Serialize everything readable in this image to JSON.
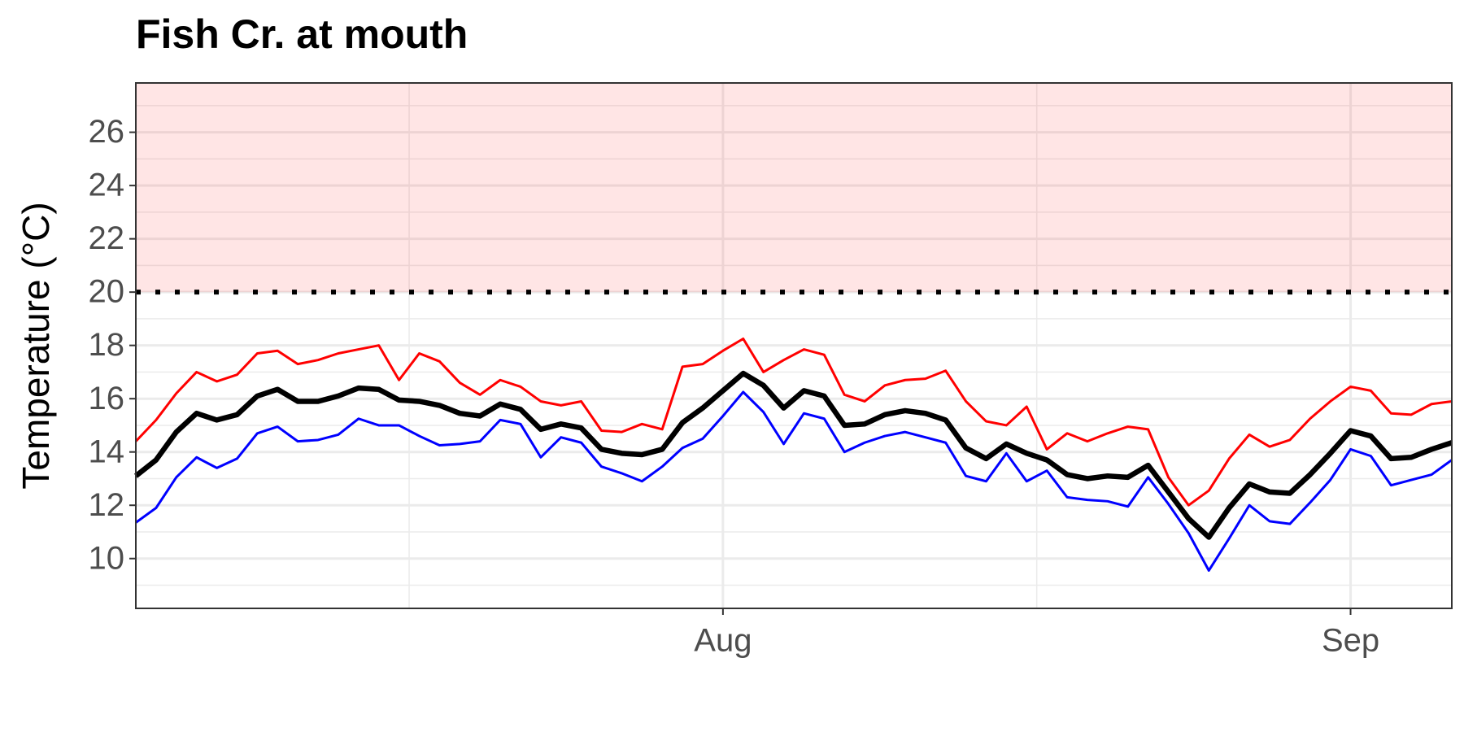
{
  "chart_data": {
    "type": "line",
    "title": "Fish Cr. at mouth",
    "y_label": "Temperature (°C)",
    "x": [
      -29,
      -28,
      -27,
      -26,
      -25,
      -24,
      -23,
      -22,
      -21,
      -20,
      -19,
      -18,
      -17,
      -16,
      -15,
      -14,
      -13,
      -12,
      -11,
      -10,
      -9,
      -8,
      -7,
      -6,
      -5,
      -4,
      -3,
      -2,
      -1,
      0,
      1,
      2,
      3,
      4,
      5,
      6,
      7,
      8,
      9,
      10,
      11,
      12,
      13,
      14,
      15,
      16,
      17,
      18,
      19,
      20,
      21,
      22,
      23,
      24,
      25,
      26,
      27,
      28,
      29,
      30,
      31,
      32,
      33,
      34,
      35,
      36
    ],
    "xlim": [
      -29,
      36
    ],
    "xticks": [
      {
        "value": 0,
        "label": "Aug"
      },
      {
        "value": 31,
        "label": "Sep"
      }
    ],
    "ylim": [
      8.13,
      27.85
    ],
    "yticks": [
      10,
      12,
      14,
      16,
      18,
      20,
      22,
      24,
      26
    ],
    "grid": true,
    "threshold": 20,
    "band_color": "rgba(255,0,0,0.1)",
    "series": [
      {
        "color": "#ff0000",
        "values": [
          14.4,
          15.2,
          16.2,
          17.0,
          16.65,
          16.9,
          17.7,
          17.8,
          17.3,
          17.45,
          17.7,
          17.85,
          18.0,
          16.7,
          17.7,
          17.4,
          16.6,
          16.15,
          16.7,
          16.45,
          15.9,
          15.75,
          15.9,
          14.8,
          14.75,
          15.05,
          14.85,
          17.2,
          17.3,
          17.8,
          18.25,
          17.0,
          17.45,
          17.85,
          17.65,
          16.15,
          15.9,
          16.5,
          16.7,
          16.75,
          17.05,
          15.9,
          15.15,
          15.0,
          15.7,
          14.1,
          14.7,
          14.4,
          14.7,
          14.95,
          14.85,
          13.05,
          12.0,
          12.55,
          13.75,
          14.65,
          14.2,
          14.45,
          15.25,
          15.9,
          16.45,
          16.3,
          15.45,
          15.4,
          15.8,
          15.9
        ]
      },
      {
        "color": "#000000",
        "values": [
          13.1,
          13.7,
          14.75,
          15.45,
          15.2,
          15.4,
          16.1,
          16.35,
          15.9,
          15.9,
          16.1,
          16.4,
          16.35,
          15.95,
          15.9,
          15.75,
          15.45,
          15.35,
          15.8,
          15.6,
          14.85,
          15.05,
          14.9,
          14.1,
          13.95,
          13.9,
          14.1,
          15.1,
          15.65,
          16.3,
          16.95,
          16.5,
          15.65,
          16.3,
          16.1,
          15.0,
          15.05,
          15.4,
          15.55,
          15.45,
          15.2,
          14.15,
          13.75,
          14.3,
          13.95,
          13.7,
          13.15,
          13.0,
          13.1,
          13.05,
          13.5,
          12.5,
          11.5,
          10.8,
          11.9,
          12.8,
          12.5,
          12.45,
          13.15,
          13.95,
          14.8,
          14.6,
          13.75,
          13.8,
          14.1,
          14.35
        ]
      },
      {
        "color": "#0000ff",
        "values": [
          11.35,
          11.9,
          13.05,
          13.8,
          13.4,
          13.75,
          14.7,
          14.95,
          14.4,
          14.45,
          14.65,
          15.25,
          15.0,
          15.0,
          14.6,
          14.25,
          14.3,
          14.4,
          15.2,
          15.05,
          13.8,
          14.55,
          14.35,
          13.45,
          13.2,
          12.9,
          13.45,
          14.15,
          14.5,
          15.35,
          16.25,
          15.5,
          14.3,
          15.45,
          15.25,
          14.0,
          14.35,
          14.6,
          14.75,
          14.55,
          14.35,
          13.1,
          12.9,
          13.95,
          12.9,
          13.3,
          12.3,
          12.2,
          12.15,
          11.95,
          13.05,
          12.05,
          10.95,
          9.55,
          10.75,
          12.0,
          11.4,
          11.3,
          12.1,
          12.95,
          14.1,
          13.85,
          12.75,
          12.95,
          13.15,
          13.7
        ]
      }
    ]
  }
}
